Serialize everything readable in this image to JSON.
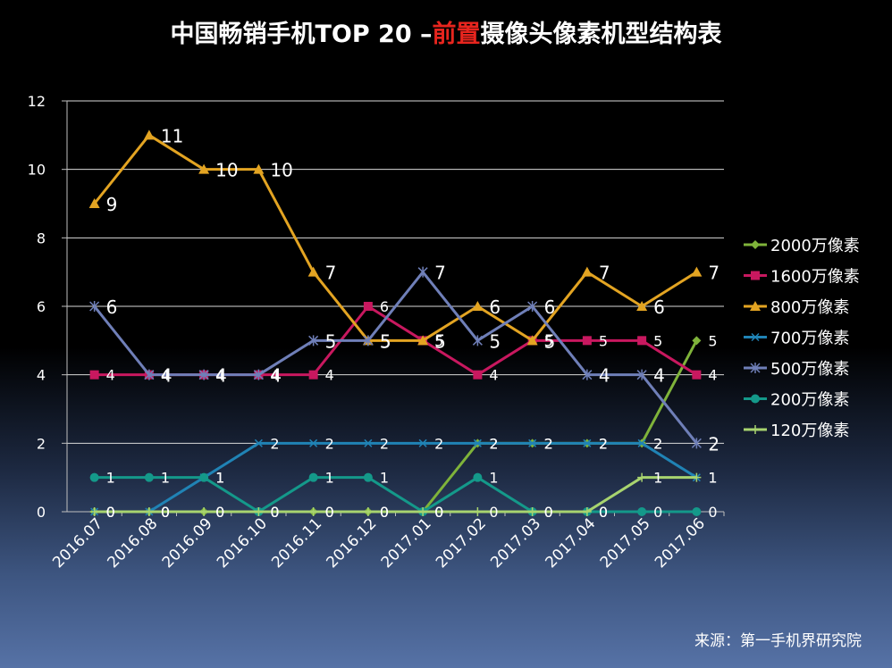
{
  "title": {
    "part1": "中国畅销手机TOP 20 –",
    "highlight": "前置",
    "part2": "摄像头像素机型结构表",
    "highlight_color": "#e8251e"
  },
  "source": "来源：第一手机界研究院",
  "chart_data": {
    "type": "line",
    "categories": [
      "2016.07",
      "2016.08",
      "2016.09",
      "2016.10",
      "2016.11",
      "2016.12",
      "2017.01",
      "2017.02",
      "2017.03",
      "2017.04",
      "2017.05",
      "2017.06"
    ],
    "ylim": [
      0,
      12
    ],
    "yticks": [
      0,
      2,
      4,
      6,
      8,
      10,
      12
    ],
    "grid": true,
    "legend_position": "right",
    "series": [
      {
        "name": "2000万像素",
        "color": "#7fb33a",
        "marker": "diamond",
        "values": [
          0,
          0,
          0,
          0,
          0,
          0,
          0,
          2,
          2,
          2,
          2,
          5
        ],
        "labels": [
          "0",
          "0",
          "0",
          "0",
          "0",
          "0",
          "0",
          "2",
          "2",
          "2",
          "2",
          "5"
        ]
      },
      {
        "name": "1600万像素",
        "color": "#c8185f",
        "marker": "square",
        "values": [
          4,
          4,
          4,
          4,
          4,
          6,
          5,
          4,
          5,
          5,
          5,
          4
        ],
        "labels": [
          "4",
          "4",
          "4",
          "4",
          "4",
          "6",
          "5",
          "4",
          "5",
          "5",
          "5",
          "4"
        ]
      },
      {
        "name": "800万像素",
        "color": "#e3a422",
        "marker": "triangle",
        "values": [
          9,
          11,
          10,
          10,
          7,
          5,
          5,
          6,
          5,
          7,
          6,
          7
        ],
        "labels": [
          "9",
          "11",
          "10",
          "10",
          "7",
          "5",
          "5",
          "6",
          "5",
          "7",
          "6",
          "7"
        ]
      },
      {
        "name": "700万像素",
        "color": "#2083b5",
        "marker": "x",
        "values": [
          0,
          0,
          1,
          2,
          2,
          2,
          2,
          2,
          2,
          2,
          2,
          1
        ],
        "labels": [
          "0",
          "0",
          "1",
          "2",
          "2",
          "2",
          "2",
          "2",
          "2",
          "2",
          "2",
          "1"
        ]
      },
      {
        "name": "500万像素",
        "color": "#6f7fb8",
        "marker": "star",
        "values": [
          6,
          4,
          4,
          4,
          5,
          5,
          7,
          5,
          6,
          4,
          4,
          2
        ],
        "labels": [
          "6",
          "4",
          "4",
          "4",
          "5",
          "5",
          "7",
          "5",
          "6",
          "4",
          "4",
          "2"
        ]
      },
      {
        "name": "200万像素",
        "color": "#14998a",
        "marker": "circle",
        "values": [
          1,
          1,
          1,
          0,
          1,
          1,
          0,
          1,
          0,
          0,
          0,
          0
        ],
        "labels": [
          "1",
          "1",
          "1",
          "0",
          "1",
          "1",
          "0",
          "1",
          "0",
          "0",
          "0",
          "0"
        ]
      },
      {
        "name": "120万像素",
        "color": "#a8d46f",
        "marker": "plus",
        "values": [
          0,
          0,
          0,
          0,
          0,
          0,
          0,
          0,
          0,
          0,
          1,
          1
        ],
        "labels": [
          "0",
          "0",
          "0",
          "0",
          "0",
          "0",
          "0",
          "0",
          "0",
          "0",
          "1",
          "1"
        ]
      }
    ]
  }
}
